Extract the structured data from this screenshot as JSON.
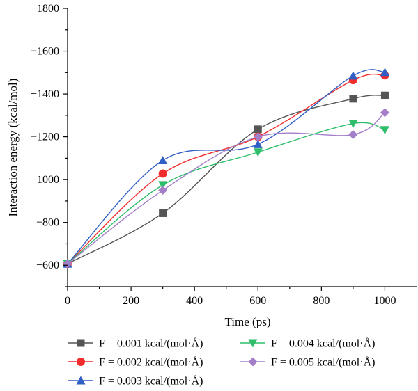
{
  "chart_data": {
    "type": "line",
    "xlabel": "Time (ps)",
    "ylabel": "Interaction energy (kcal/mol)",
    "xlim": [
      0,
      1100
    ],
    "ylim": [
      -1800,
      -500
    ],
    "y_inverted": true,
    "x_ticks": [
      0,
      200,
      400,
      600,
      800,
      1000
    ],
    "x_tick_labels": [
      "0",
      "200",
      "400",
      "600",
      "800",
      "1000"
    ],
    "y_ticks": [
      -600,
      -800,
      -1000,
      -1200,
      -1400,
      -1600,
      -1800
    ],
    "y_tick_labels": [
      "−600",
      "−800",
      "−1000",
      "−1200",
      "−1400",
      "−1600",
      "−1800"
    ],
    "x": [
      0,
      300,
      600,
      900,
      1000
    ],
    "legend_placement": "bottom",
    "grid": false,
    "series": [
      {
        "name": "F = 0.001 kcal/(mol·Å)",
        "color": "#555555",
        "marker": "square",
        "values": [
          -607,
          -843,
          -1235,
          -1378,
          -1393
        ]
      },
      {
        "name": "F = 0.002 kcal/(mol·Å)",
        "color": "#f22c2c",
        "marker": "circle",
        "values": [
          -607,
          -1028,
          -1200,
          -1465,
          -1487
        ]
      },
      {
        "name": "F = 0.003 kcal/(mol·Å)",
        "color": "#2f5ec4",
        "marker": "triangle",
        "values": [
          -607,
          -1090,
          -1165,
          -1485,
          -1502
        ]
      },
      {
        "name": "F = 0.004 kcal/(mol·Å)",
        "color": "#2ebd6b",
        "marker": "triangle-down",
        "values": [
          -607,
          -975,
          -1128,
          -1262,
          -1232
        ]
      },
      {
        "name": "F = 0.005 kcal/(mol·Å)",
        "color": "#a37fc9",
        "marker": "diamond",
        "values": [
          -607,
          -950,
          -1200,
          -1210,
          -1313
        ]
      }
    ]
  }
}
